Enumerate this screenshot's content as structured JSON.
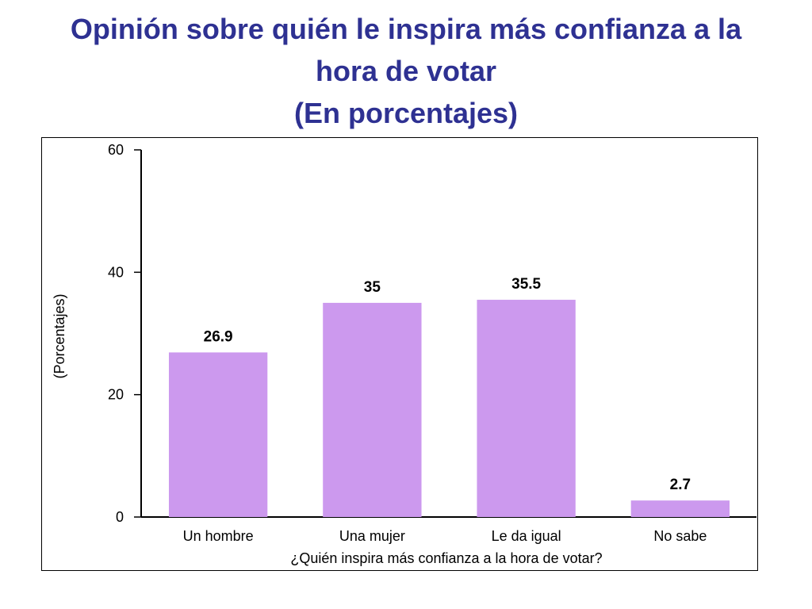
{
  "title": {
    "line1": "Opinión sobre quién le inspira más confianza a la",
    "line2": "hora de votar",
    "line3": "(En porcentajes)"
  },
  "colors": {
    "title": "#2E3192",
    "bar": "#CC99EE",
    "axis": "#000000"
  },
  "chart_data": {
    "type": "bar",
    "categories": [
      "Un hombre",
      "Una mujer",
      "Le da igual",
      "No sabe"
    ],
    "values": [
      26.9,
      35,
      35.5,
      2.7
    ],
    "value_labels": [
      "26.9",
      "35",
      "35.5",
      "2.7"
    ],
    "xlabel": "¿Quién inspira más confianza a la hora de votar?",
    "ylabel": "(Porcentajes)",
    "ylim": [
      0,
      60
    ],
    "yticks": [
      0,
      20,
      40,
      60
    ],
    "grid": false,
    "legend": "none"
  }
}
